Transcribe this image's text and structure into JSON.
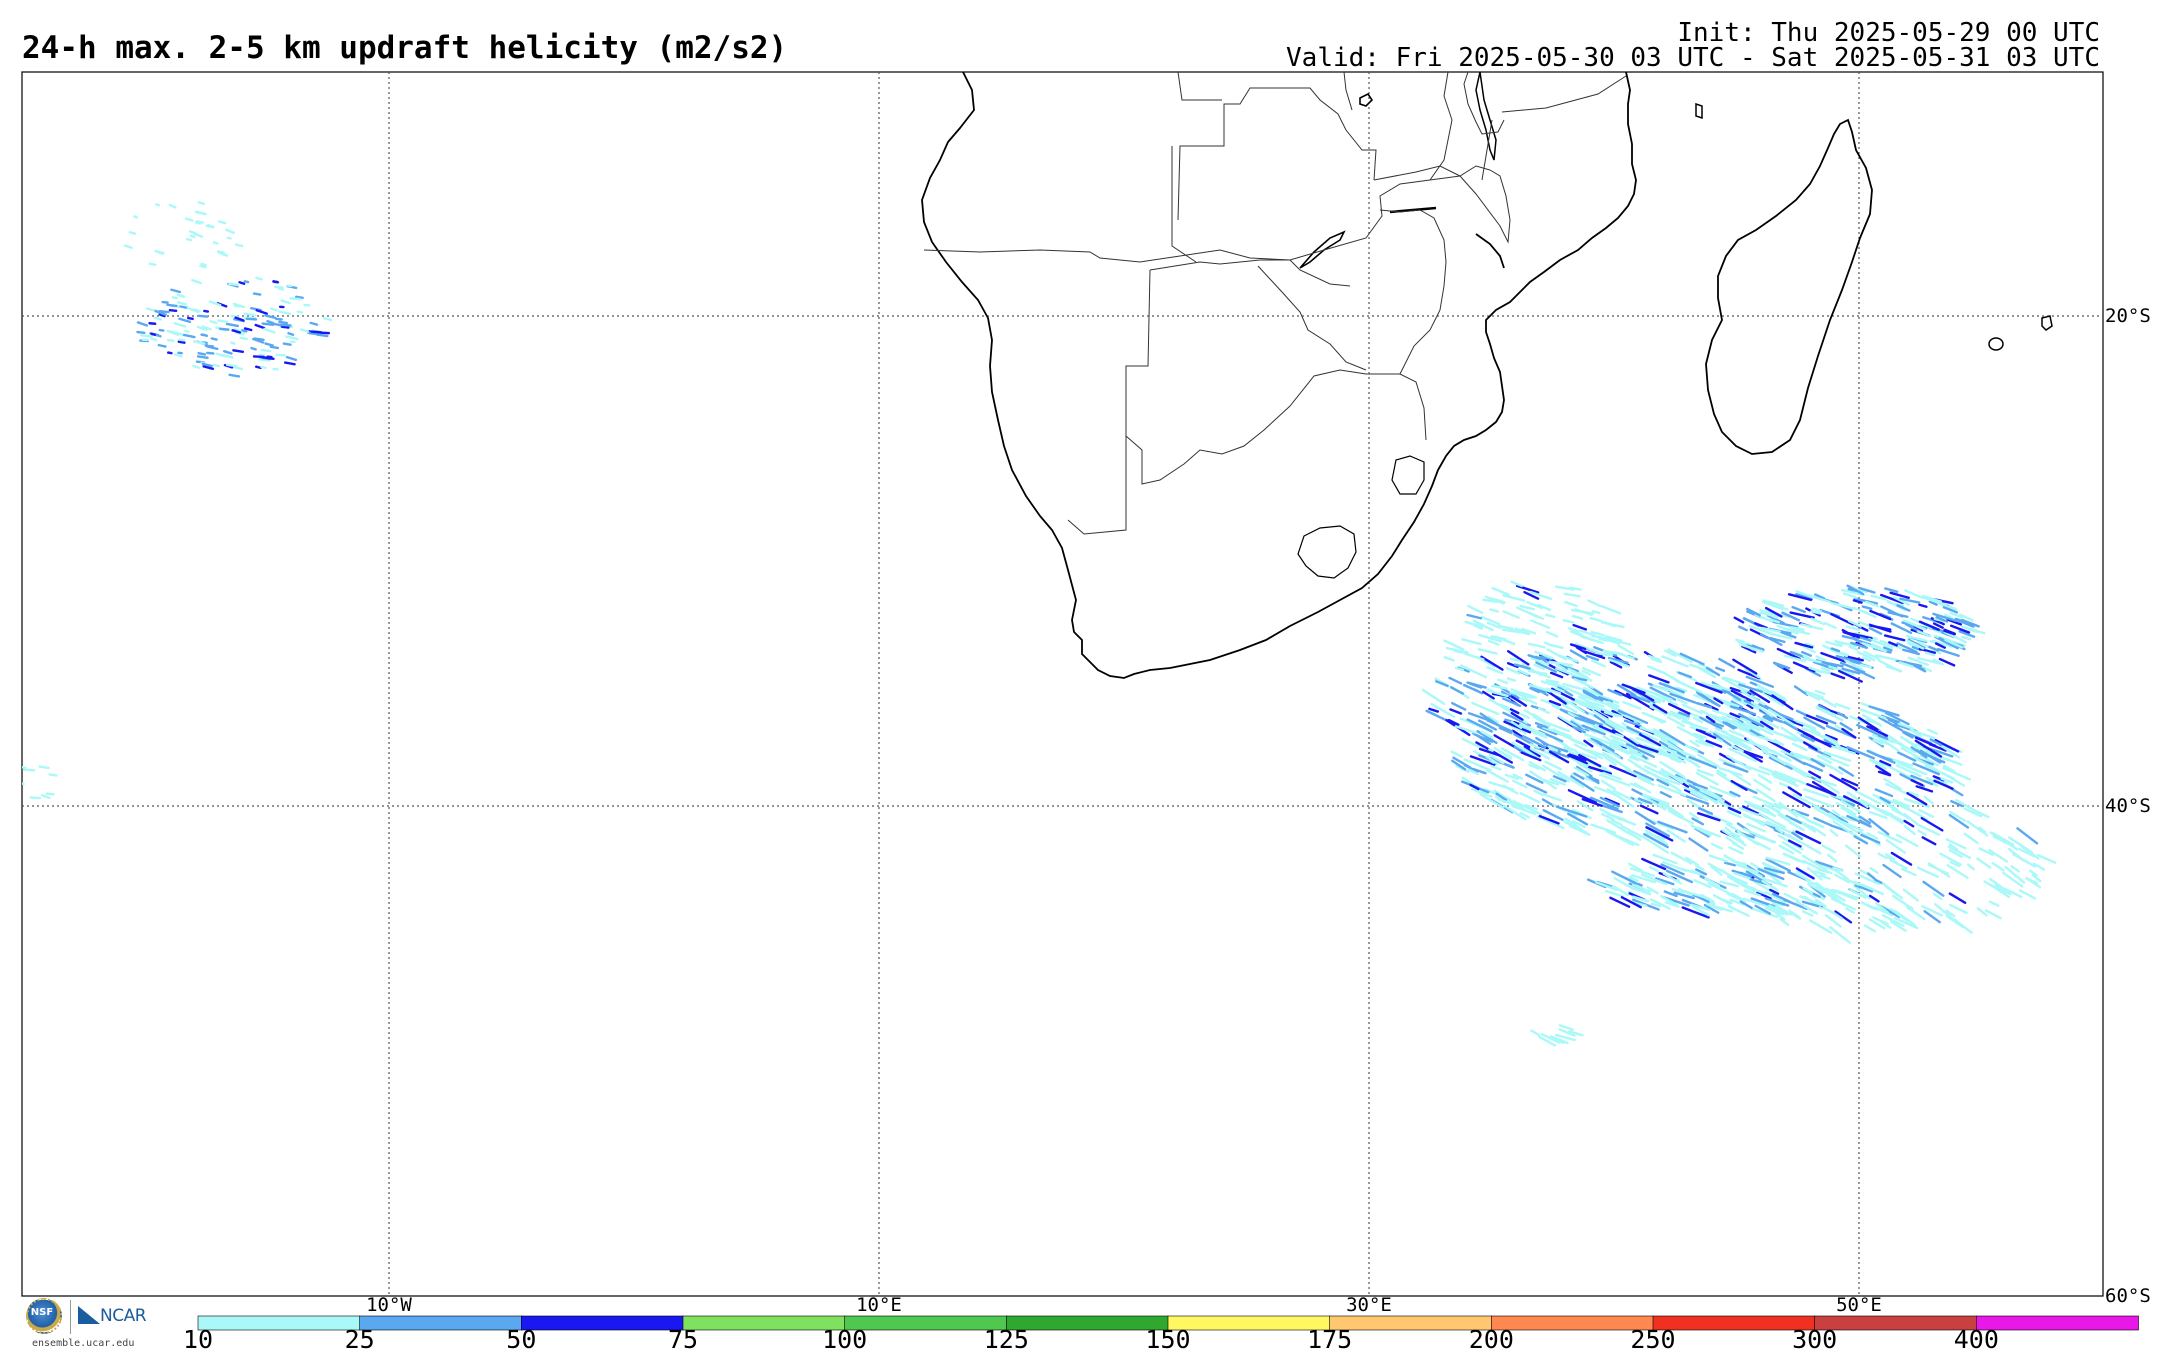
{
  "header": {
    "title": "24-h max. 2-5 km updraft helicity (m2/s2)",
    "init": "Init: Thu 2025-05-29 00 UTC",
    "valid": "Valid: Fri 2025-05-30 03 UTC - Sat 2025-05-31 03 UTC"
  },
  "map": {
    "lat_labels": [
      "20°S",
      "40°S",
      "60°S"
    ],
    "lon_labels": [
      "10°W",
      "10°E",
      "30°E",
      "50°E"
    ]
  },
  "colorbar": {
    "labels": [
      "10",
      "25",
      "50",
      "75",
      "100",
      "125",
      "150",
      "175",
      "200",
      "250",
      "300",
      "400"
    ],
    "colors": [
      "#aaf8f8",
      "#5aa8f0",
      "#1a18f0",
      "#80e060",
      "#50c850",
      "#30a830",
      "#fff860",
      "#ffc870",
      "#ff8850",
      "#f03020",
      "#c84040",
      "#e818e8"
    ]
  },
  "logos": {
    "nsf": "NSF",
    "ncar": "NCAR",
    "site": "ensemble.ucar.edu"
  }
}
